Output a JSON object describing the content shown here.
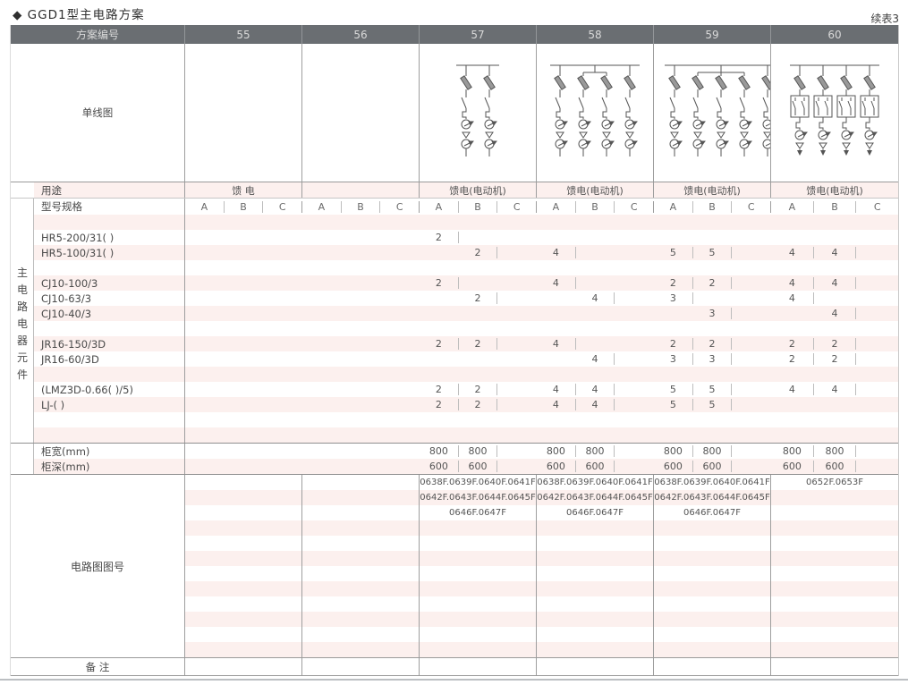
{
  "page": {
    "title": "◆ GGD1型主电路方案",
    "continuation": "续表3"
  },
  "colors": {
    "header_bg": "#6a6e72",
    "stripe": "#fcf0ee",
    "line_major": "#9e9e9e",
    "line_sub": "#bdbdbd"
  },
  "header": {
    "scheme_label": "方案编号",
    "schemes": [
      "55",
      "56",
      "57",
      "58",
      "59",
      "60"
    ]
  },
  "diagram_row": {
    "label": "单线图",
    "diagrams": [
      null,
      null,
      {
        "scheme": "57",
        "branches": 2
      },
      {
        "scheme": "58",
        "branches": 4,
        "bridge": [
          1,
          2
        ]
      },
      {
        "scheme": "59",
        "branches": 5,
        "bridge": [
          1,
          3
        ]
      },
      {
        "scheme": "60",
        "branches": 4,
        "reversing": true
      }
    ]
  },
  "usage_row": {
    "label": "用途",
    "values": [
      "馈 电",
      "",
      "馈电(电动机)",
      "馈电(电动机)",
      "馈电(电动机)",
      "馈电(电动机)"
    ]
  },
  "model_row": {
    "label": "型号规格",
    "subcolumns": [
      "A",
      "B",
      "C"
    ]
  },
  "side_label": "主电路电器元件",
  "component_rows": [
    {
      "label": "",
      "values": [
        "",
        "",
        "",
        "",
        "",
        "",
        "",
        "",
        "",
        "",
        "",
        "",
        "",
        "",
        "",
        "",
        "",
        ""
      ]
    },
    {
      "label": "HR5-200/31( )",
      "values": [
        "",
        "",
        "",
        "",
        "",
        "",
        "2",
        "",
        "",
        "",
        "",
        "",
        "",
        "",
        "",
        "",
        "",
        ""
      ]
    },
    {
      "label": "HR5-100/31( )",
      "values": [
        "",
        "",
        "",
        "",
        "",
        "",
        "",
        "2",
        "",
        "4",
        "",
        "",
        "5",
        "5",
        "",
        "4",
        "4",
        ""
      ]
    },
    {
      "label": "",
      "values": [
        "",
        "",
        "",
        "",
        "",
        "",
        "",
        "",
        "",
        "",
        "",
        "",
        "",
        "",
        "",
        "",
        "",
        ""
      ]
    },
    {
      "label": "CJ10-100/3",
      "values": [
        "",
        "",
        "",
        "",
        "",
        "",
        "2",
        "",
        "",
        "4",
        "",
        "",
        "2",
        "2",
        "",
        "4",
        "4",
        ""
      ]
    },
    {
      "label": "CJ10-63/3",
      "values": [
        "",
        "",
        "",
        "",
        "",
        "",
        "",
        "2",
        "",
        "",
        "4",
        "",
        "3",
        "",
        "",
        "4",
        "",
        ""
      ]
    },
    {
      "label": "CJ10-40/3",
      "values": [
        "",
        "",
        "",
        "",
        "",
        "",
        "",
        "",
        "",
        "",
        "",
        "",
        "",
        "3",
        "",
        "",
        "4",
        ""
      ]
    },
    {
      "label": "",
      "values": [
        "",
        "",
        "",
        "",
        "",
        "",
        "",
        "",
        "",
        "",
        "",
        "",
        "",
        "",
        "",
        "",
        "",
        ""
      ]
    },
    {
      "label": "JR16-150/3D",
      "values": [
        "",
        "",
        "",
        "",
        "",
        "",
        "2",
        "2",
        "",
        "4",
        "",
        "",
        "2",
        "2",
        "",
        "2",
        "2",
        ""
      ]
    },
    {
      "label": "JR16-60/3D",
      "values": [
        "",
        "",
        "",
        "",
        "",
        "",
        "",
        "",
        "",
        "",
        "4",
        "",
        "3",
        "3",
        "",
        "2",
        "2",
        ""
      ]
    },
    {
      "label": "",
      "values": [
        "",
        "",
        "",
        "",
        "",
        "",
        "",
        "",
        "",
        "",
        "",
        "",
        "",
        "",
        "",
        "",
        "",
        ""
      ]
    },
    {
      "label": "(LMZ3D-0.66( )/5)",
      "values": [
        "",
        "",
        "",
        "",
        "",
        "",
        "2",
        "2",
        "",
        "4",
        "4",
        "",
        "5",
        "5",
        "",
        "4",
        "4",
        ""
      ]
    },
    {
      "label": "LJ-( )",
      "values": [
        "",
        "",
        "",
        "",
        "",
        "",
        "2",
        "2",
        "",
        "4",
        "4",
        "",
        "5",
        "5",
        "",
        "",
        "",
        ""
      ]
    },
    {
      "label": "",
      "values": [
        "",
        "",
        "",
        "",
        "",
        "",
        "",
        "",
        "",
        "",
        "",
        "",
        "",
        "",
        "",
        "",
        "",
        ""
      ]
    },
    {
      "label": "",
      "values": [
        "",
        "",
        "",
        "",
        "",
        "",
        "",
        "",
        "",
        "",
        "",
        "",
        "",
        "",
        "",
        "",
        "",
        ""
      ]
    }
  ],
  "cabinet_rows": [
    {
      "label": "柜宽(mm)",
      "values": [
        "",
        "",
        "",
        "",
        "",
        "",
        "800",
        "800",
        "",
        "800",
        "800",
        "",
        "800",
        "800",
        "",
        "800",
        "800",
        ""
      ]
    },
    {
      "label": "柜深(mm)",
      "values": [
        "",
        "",
        "",
        "",
        "",
        "",
        "600",
        "600",
        "",
        "600",
        "600",
        "",
        "600",
        "600",
        "",
        "600",
        "600",
        ""
      ]
    }
  ],
  "circuit_section": {
    "label": "电路图图号",
    "rows": [
      [
        "",
        "",
        "0638F.0639F.0640F.0641F",
        "0638F.0639F.0640F.0641F",
        "0638F.0639F.0640F.0641F",
        "0652F.0653F"
      ],
      [
        "",
        "",
        "0642F.0643F.0644F.0645F",
        "0642F.0643F.0644F.0645F",
        "0642F.0643F.0644F.0645F",
        ""
      ],
      [
        "",
        "",
        "0646F.0647F",
        "0646F.0647F",
        "0646F.0647F",
        ""
      ],
      [
        "",
        "",
        "",
        "",
        "",
        ""
      ],
      [
        "",
        "",
        "",
        "",
        "",
        ""
      ],
      [
        "",
        "",
        "",
        "",
        "",
        ""
      ],
      [
        "",
        "",
        "",
        "",
        "",
        ""
      ],
      [
        "",
        "",
        "",
        "",
        "",
        ""
      ],
      [
        "",
        "",
        "",
        "",
        "",
        ""
      ],
      [
        "",
        "",
        "",
        "",
        "",
        ""
      ],
      [
        "",
        "",
        "",
        "",
        "",
        ""
      ],
      [
        "",
        "",
        "",
        "",
        "",
        ""
      ]
    ]
  },
  "remark_row": {
    "label": "备 注",
    "values": [
      "",
      "",
      "",
      "",
      "",
      ""
    ]
  }
}
